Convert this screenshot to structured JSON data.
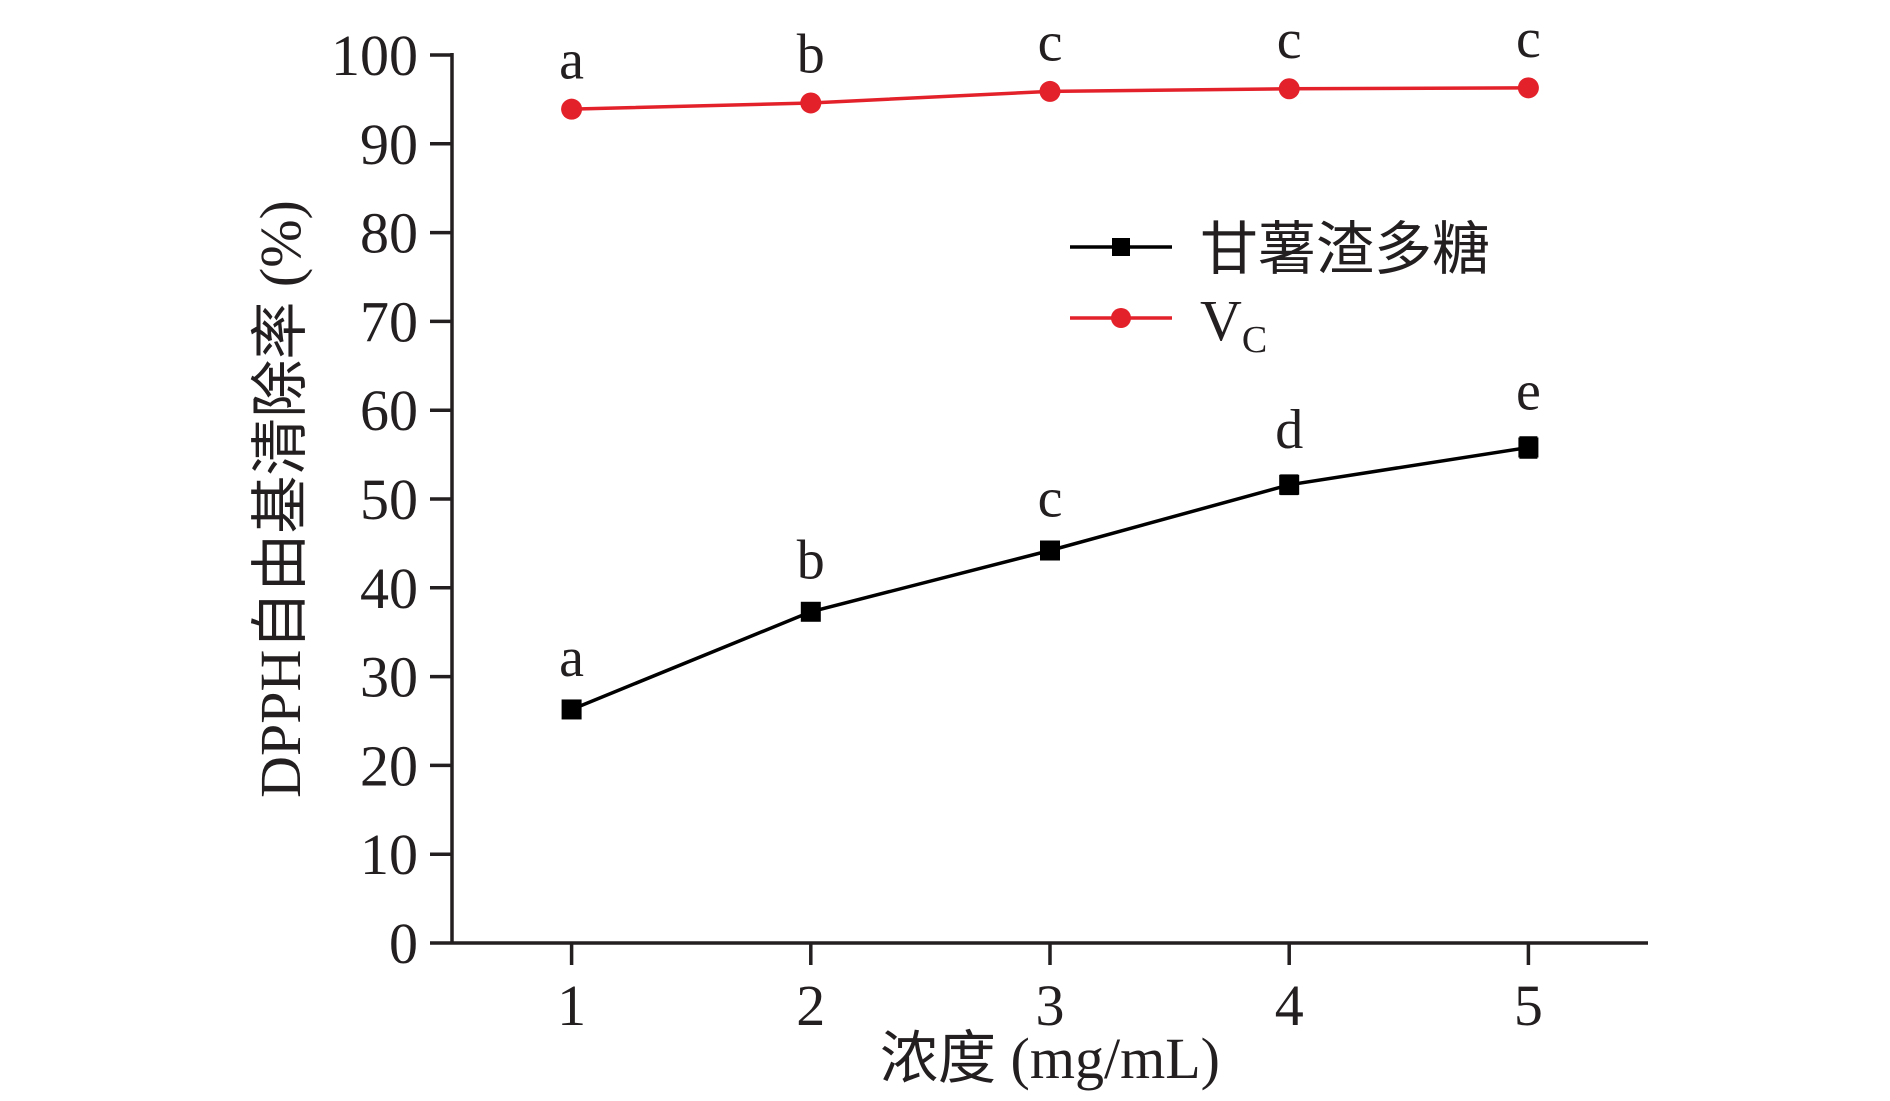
{
  "chart_data": {
    "type": "line",
    "title": "",
    "xlabel": "浓度 (mg/mL)",
    "ylabel": "DPPH自由基清除率 (%)",
    "x": [
      1,
      2,
      3,
      4,
      5
    ],
    "xlim": [
      0.5,
      5.5
    ],
    "ylim": [
      0,
      100
    ],
    "x_ticks": [
      1,
      2,
      3,
      4,
      5
    ],
    "y_ticks": [
      0,
      10,
      20,
      30,
      40,
      50,
      60,
      70,
      80,
      90,
      100
    ],
    "grid": false,
    "legend_position": "right",
    "series": [
      {
        "name": "甘薯渣多糖",
        "color": "#000000",
        "marker": "square",
        "values": [
          26.3,
          37.3,
          44.2,
          51.6,
          55.8
        ],
        "error": [
          0.6,
          0.6,
          0.7,
          1.0,
          1.1
        ],
        "significance": [
          "a",
          "b",
          "c",
          "d",
          "e"
        ]
      },
      {
        "name": "V",
        "name_subscript": "C",
        "color": "#e3212a",
        "marker": "circle",
        "values": [
          93.9,
          94.6,
          95.9,
          96.2,
          96.3
        ],
        "error": [
          0.3,
          0.3,
          0.3,
          0.3,
          0.3
        ],
        "significance": [
          "a",
          "b",
          "c",
          "c",
          "c"
        ]
      }
    ]
  }
}
